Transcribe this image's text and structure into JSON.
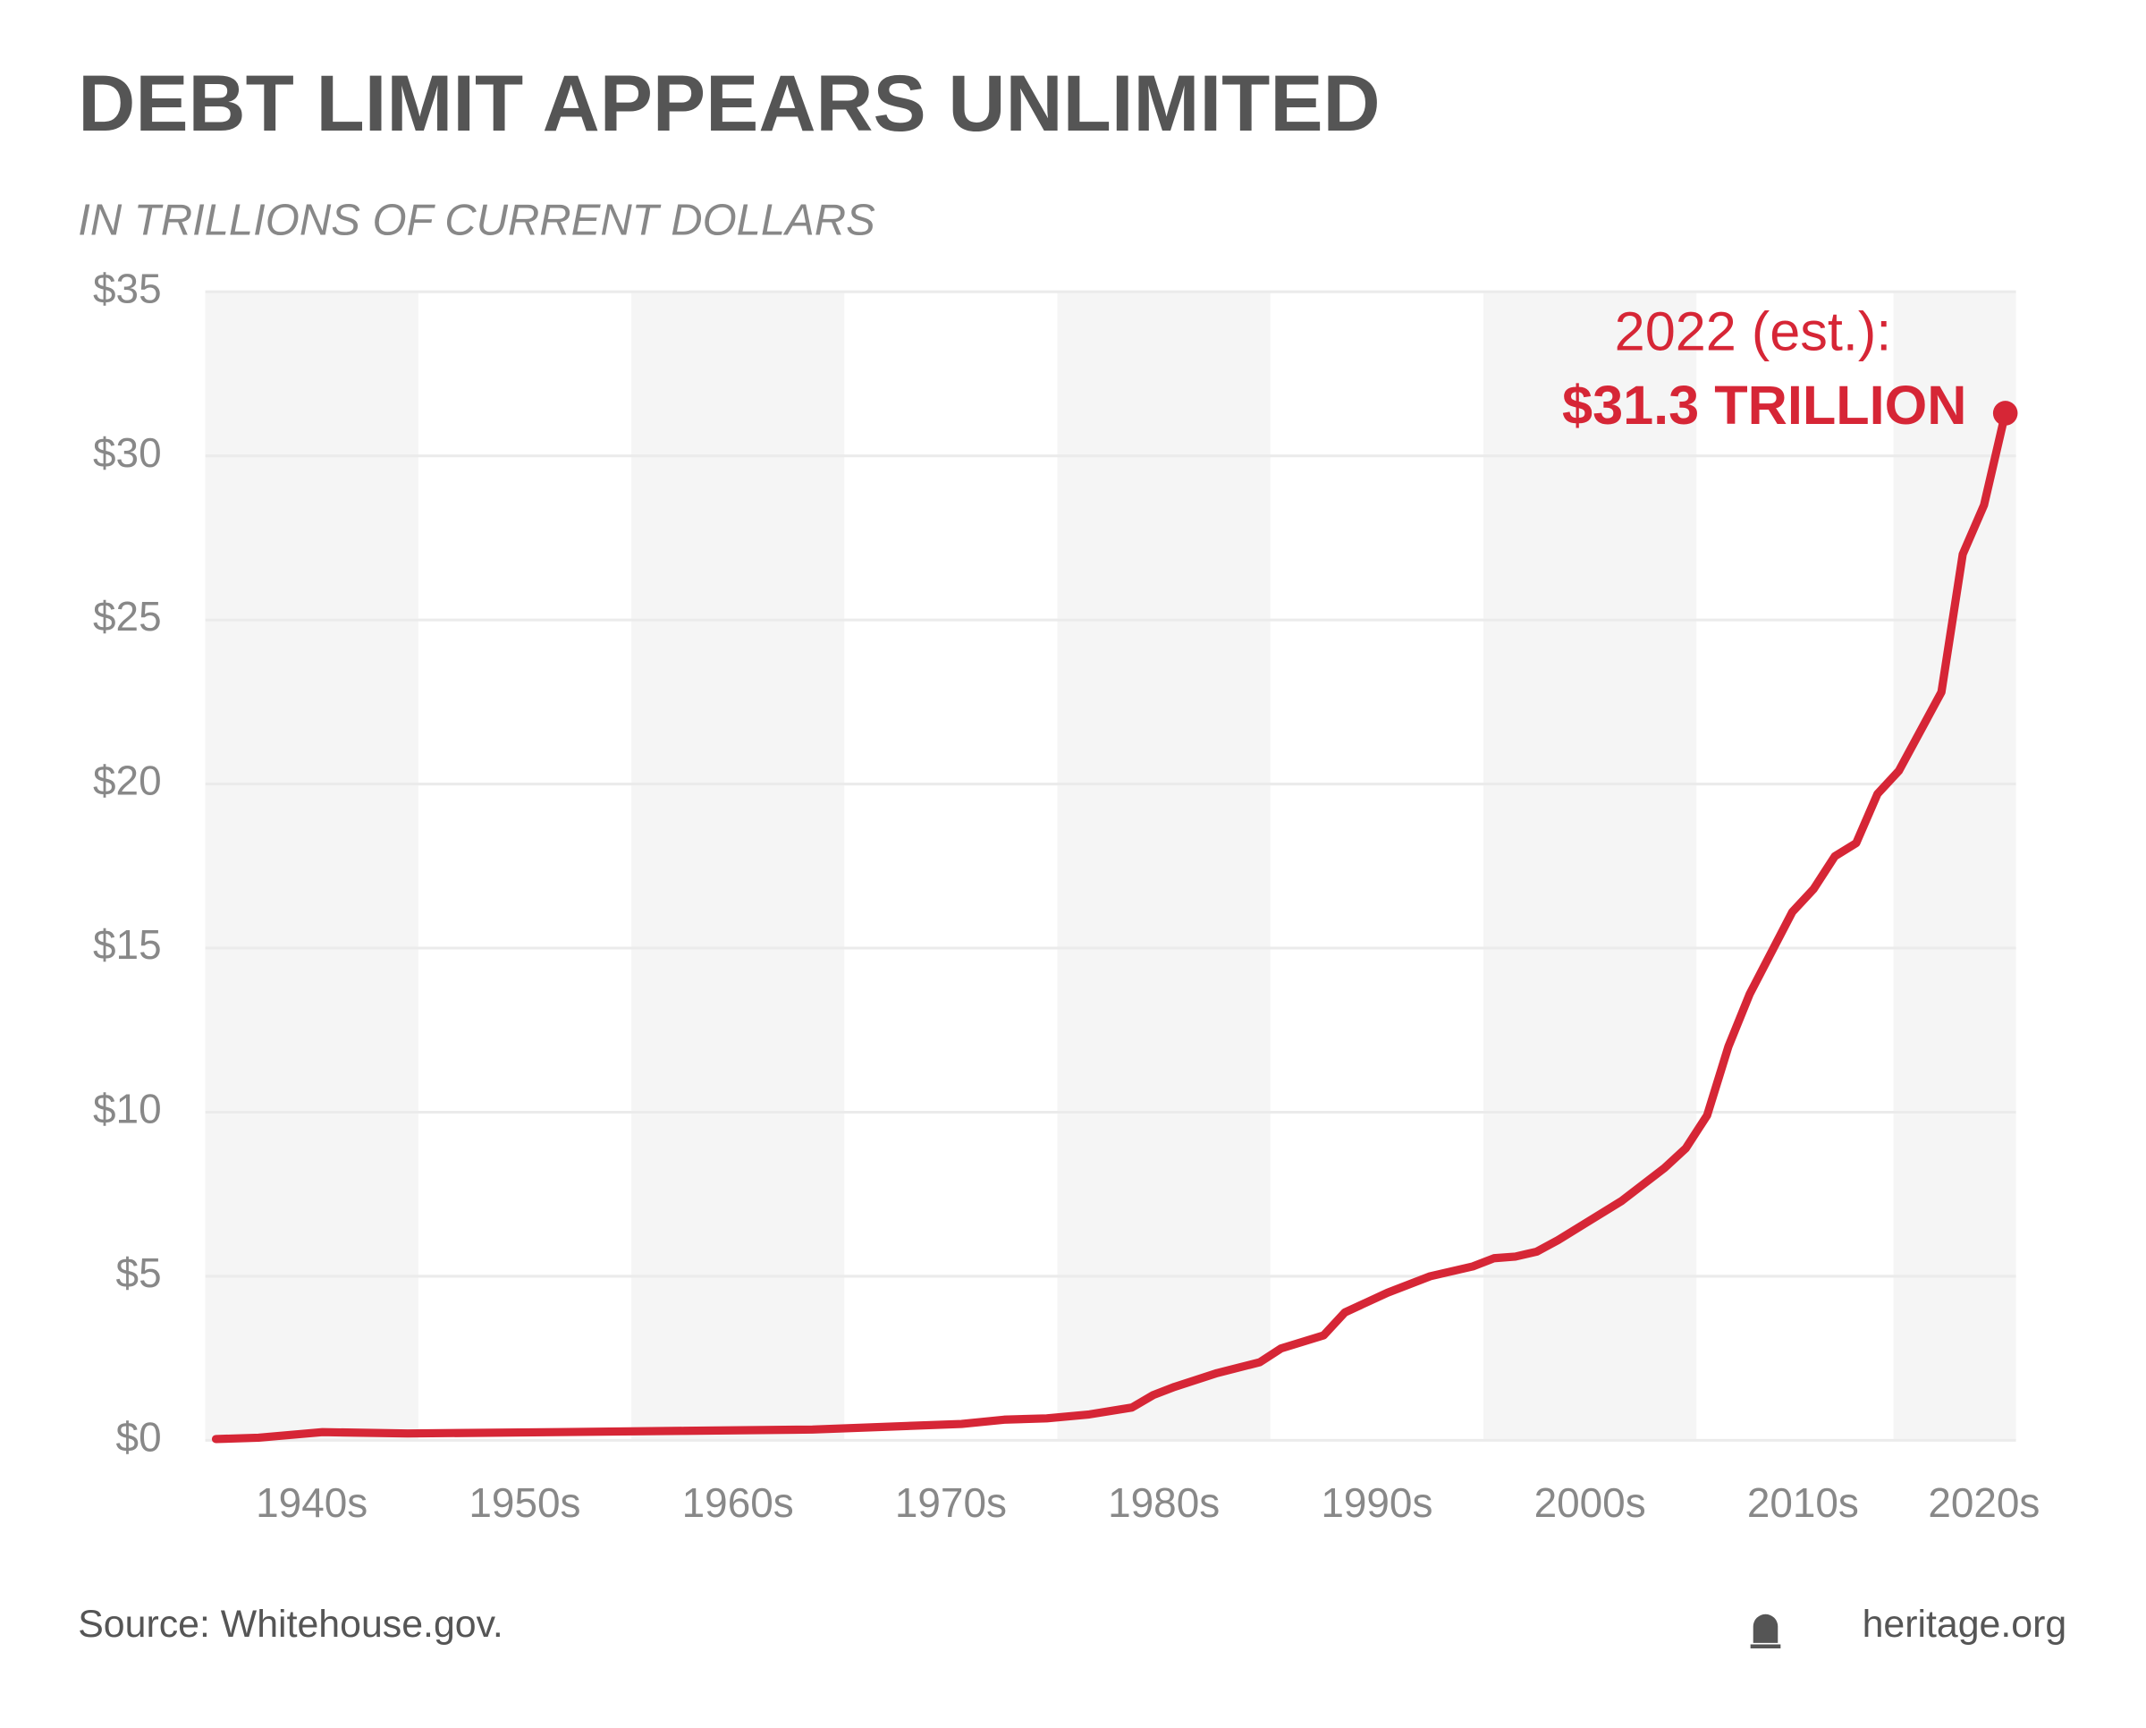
{
  "chart_data": {
    "type": "line",
    "title": "DEBT LIMIT APPEARS UNLIMITED",
    "subtitle": "IN TRILLIONS OF CURRENT DOLLARS",
    "x": [
      1938,
      1940,
      1943,
      1947,
      1954,
      1960,
      1966,
      1973,
      1975,
      1977,
      1979,
      1981,
      1982,
      1983,
      1985,
      1987,
      1988,
      1990,
      1991,
      1993,
      1995,
      1997,
      1998,
      1999,
      2000,
      2001,
      2004,
      2006,
      2007,
      2008,
      2009,
      2010,
      2012,
      2013,
      2014,
      2015,
      2016,
      2017,
      2019,
      2020,
      2021,
      2022
    ],
    "values": [
      0.04,
      0.08,
      0.25,
      0.21,
      0.25,
      0.29,
      0.33,
      0.5,
      0.63,
      0.67,
      0.79,
      1.0,
      1.38,
      1.63,
      2.05,
      2.38,
      2.8,
      3.2,
      3.9,
      4.5,
      5.0,
      5.3,
      5.55,
      5.6,
      5.75,
      6.1,
      7.3,
      8.3,
      8.9,
      9.9,
      12.0,
      13.6,
      16.1,
      16.8,
      17.8,
      18.2,
      19.7,
      20.4,
      22.8,
      27.0,
      28.5,
      31.3
    ],
    "color": "#d62636",
    "xlim": [
      1937.5,
      2022.5
    ],
    "xticks": [
      {
        "value": 1942.5,
        "label": "1940s"
      },
      {
        "value": 1952.5,
        "label": "1950s"
      },
      {
        "value": 1962.5,
        "label": "1960s"
      },
      {
        "value": 1972.5,
        "label": "1970s"
      },
      {
        "value": 1982.5,
        "label": "1980s"
      },
      {
        "value": 1992.5,
        "label": "1990s"
      },
      {
        "value": 2002.5,
        "label": "2000s"
      },
      {
        "value": 2012.5,
        "label": "2010s"
      },
      {
        "value": 2021,
        "label": "2020s"
      }
    ],
    "ylim": [
      0,
      35
    ],
    "yticks": [
      {
        "value": 0,
        "label": "$0"
      },
      {
        "value": 5,
        "label": "$5"
      },
      {
        "value": 10,
        "label": "$10"
      },
      {
        "value": 15,
        "label": "$15"
      },
      {
        "value": 20,
        "label": "$20"
      },
      {
        "value": 25,
        "label": "$25"
      },
      {
        "value": 30,
        "label": "$30"
      },
      {
        "value": 35,
        "label": "$35"
      }
    ],
    "grid": true,
    "annotation": {
      "label": "2022 (est.):",
      "value_label": "$31.3 TRILLION"
    },
    "source": "Source: Whitehouse.gov.",
    "credit": "heritage.org"
  }
}
